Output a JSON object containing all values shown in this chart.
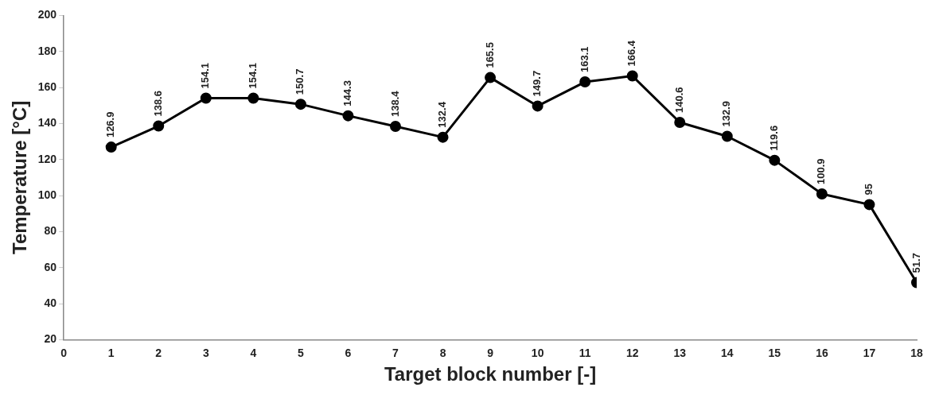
{
  "chart_data": {
    "type": "line",
    "xlabel": "Target block number [-]",
    "ylabel": "Temperature [°C]",
    "x": [
      1,
      2,
      3,
      4,
      5,
      6,
      7,
      8,
      9,
      10,
      11,
      12,
      13,
      14,
      15,
      16,
      17,
      18
    ],
    "series": [
      {
        "color": "#000000",
        "values": [
          126.9,
          138.6,
          154.1,
          154.1,
          150.7,
          144.3,
          138.4,
          132.4,
          165.5,
          149.7,
          163.1,
          166.4,
          140.6,
          132.9,
          119.6,
          100.9,
          95,
          51.7
        ]
      }
    ],
    "xlim": [
      0,
      18
    ],
    "xticks": [
      0,
      1,
      2,
      3,
      4,
      5,
      6,
      7,
      8,
      9,
      10,
      11,
      12,
      13,
      14,
      15,
      16,
      17,
      18
    ],
    "ylim": [
      20,
      200
    ],
    "yticks": [
      20,
      40,
      60,
      80,
      100,
      120,
      140,
      160,
      180,
      200
    ],
    "grid": false,
    "legend": false,
    "marker": "circle",
    "line_style": "solid",
    "data_labels": true
  }
}
